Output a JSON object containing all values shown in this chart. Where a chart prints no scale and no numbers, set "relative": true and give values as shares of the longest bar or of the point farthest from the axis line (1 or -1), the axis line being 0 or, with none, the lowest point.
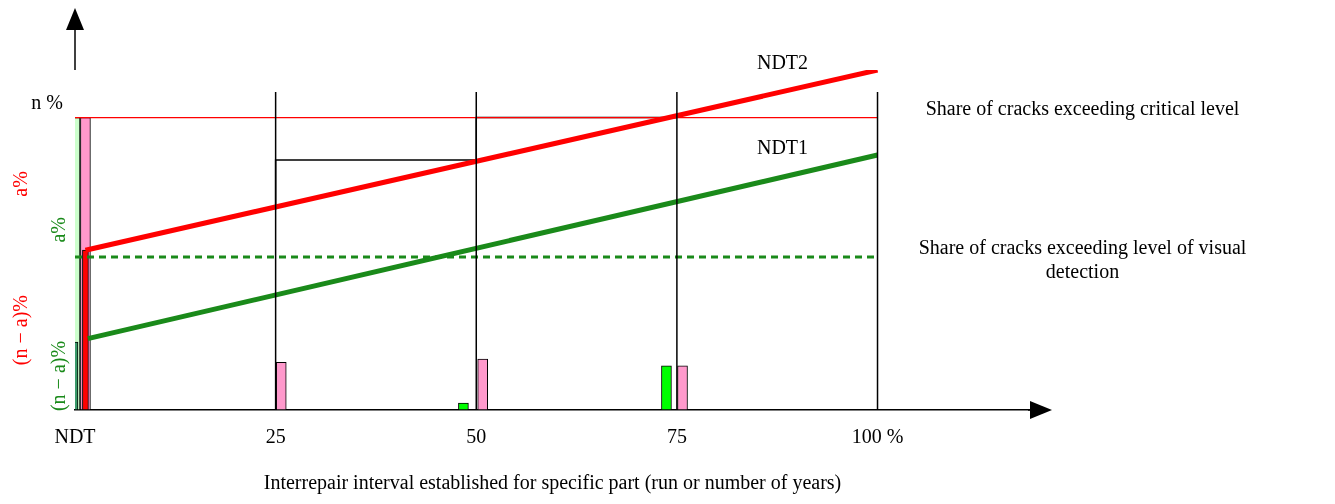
{
  "chart_data": {
    "type": "line",
    "relative": true,
    "xlabel": "Interrepair interval established for specific part (run or number of years)",
    "xlim": [
      0,
      119
    ],
    "xticks": [
      {
        "value": 0,
        "label": "NDT"
      },
      25,
      50,
      75,
      {
        "value": 100,
        "label": "100 %"
      }
    ],
    "legend": false,
    "tick_labels": "x",
    "marker": "none",
    "series": [
      {
        "name": "NDT2",
        "color": "#ff0000",
        "x": [
          1.3,
          100
        ],
        "values": [
          0.47,
          1
        ]
      },
      {
        "name": "NDT1",
        "color": "#1a8a1a",
        "x": [
          1.6,
          100
        ],
        "values": [
          0.21,
          0.75
        ]
      },
      {
        "type": "step",
        "color": "#000000",
        "x": [
          25,
          50,
          75
        ],
        "values": [
          0.59,
          0.735,
          0.86
        ]
      },
      {
        "type": "bar",
        "color": "#3a9a6a",
        "x": [
          0
        ],
        "values": [
          0.2
        ]
      },
      {
        "type": "bar",
        "color": "#ccffcc",
        "x": [
          0
        ],
        "values": [
          0.86
        ]
      },
      {
        "type": "bar",
        "color": "#ff0000",
        "x": [
          1.3
        ],
        "values": [
          0.47
        ]
      },
      {
        "type": "bar",
        "color": "#ff99cc",
        "x": [
          1.3,
          25.7,
          50.8,
          75.7
        ],
        "values": [
          0.86,
          0.14,
          0.15,
          0.13
        ]
      },
      {
        "type": "bar",
        "color": "#00ff00",
        "x": [
          48.4,
          73.7
        ],
        "values": [
          0.02,
          0.13
        ]
      }
    ],
    "ref_lines": [
      {
        "axis": "y",
        "value": 0.86,
        "label": "Share of cracks exceeding critical level",
        "color": "#ff0000"
      },
      {
        "axis": "y",
        "value": 0.45,
        "label": "Share of cracks exceeding level of visual detection",
        "color": "#1a8a1a",
        "line_style": "dashed"
      },
      {
        "axis": "x",
        "value": 25,
        "color": "#000000"
      },
      {
        "axis": "x",
        "value": 50,
        "color": "#000000"
      },
      {
        "axis": "x",
        "value": 75,
        "color": "#000000"
      },
      {
        "axis": "x",
        "value": 100,
        "color": "#000000"
      }
    ],
    "annotations": [
      {
        "text": "n %",
        "x": 0,
        "y": 0.86
      },
      "a%",
      "(n − a)%",
      "a%",
      "(n − a)%"
    ]
  }
}
